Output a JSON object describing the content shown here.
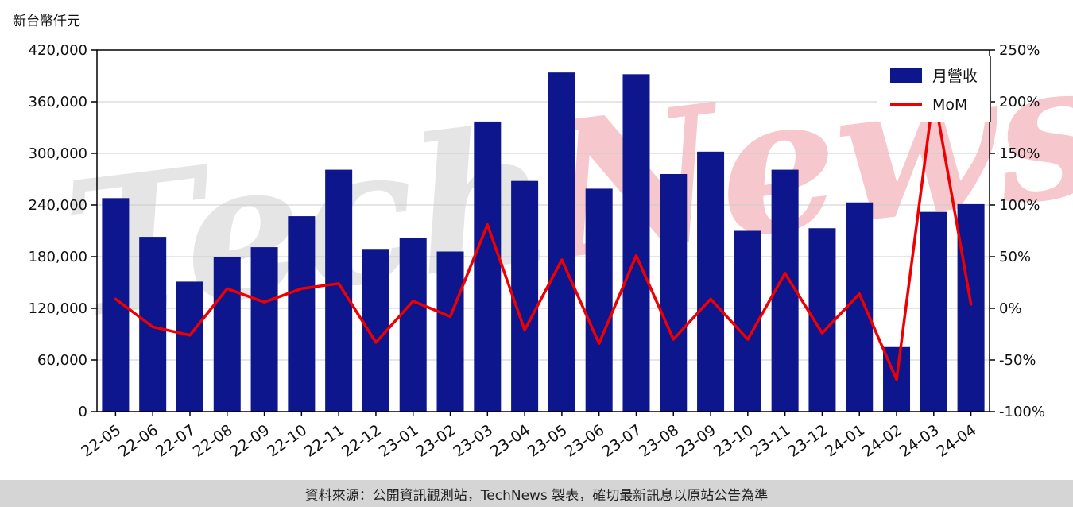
{
  "unit_label": "新台幣仟元",
  "watermark": {
    "part1": "Tech",
    "part2": "News"
  },
  "legend": {
    "bar_label": "月營收",
    "line_label": "MoM"
  },
  "footer": {
    "text": "資料來源：公開資訊觀測站，TechNews 製表，確切最新訊息以原站公告為準"
  },
  "colors": {
    "bar": "#0d168c",
    "line": "#ee0000",
    "grid": "#cccccc",
    "axis": "#000000",
    "tick_text": "#111111",
    "footer_bg": "#d5d5d5"
  },
  "chart_data": {
    "type": "bar",
    "title": "",
    "xlabel": "",
    "ylabel": "新台幣仟元",
    "grid": true,
    "legend_position": "top-right",
    "categories": [
      "22-05",
      "22-06",
      "22-07",
      "22-08",
      "22-09",
      "22-10",
      "22-11",
      "22-12",
      "23-01",
      "23-02",
      "23-03",
      "23-04",
      "23-05",
      "23-06",
      "23-07",
      "23-08",
      "23-09",
      "23-10",
      "23-11",
      "23-12",
      "24-01",
      "24-02",
      "24-03",
      "24-04"
    ],
    "series": [
      {
        "name": "月營收",
        "type": "bar",
        "axis": "left",
        "values": [
          248000,
          203000,
          151000,
          180000,
          191000,
          227000,
          281000,
          189000,
          202000,
          186000,
          337000,
          268000,
          394000,
          259000,
          392000,
          276000,
          302000,
          210000,
          281000,
          213000,
          243000,
          75000,
          232000,
          241000
        ]
      },
      {
        "name": "MoM",
        "type": "line",
        "axis": "right",
        "values": [
          9,
          -18,
          -26,
          19,
          6,
          19,
          24,
          -33,
          7,
          -8,
          81,
          -21,
          47,
          -34,
          51,
          -30,
          9,
          -30,
          34,
          -24,
          14,
          -69,
          209,
          4
        ]
      }
    ],
    "left_axis": {
      "min": 0,
      "max": 420000,
      "tick_values": [
        0,
        60000,
        120000,
        180000,
        240000,
        300000,
        360000,
        420000
      ],
      "tick_labels": [
        "0",
        "60,000",
        "120,000",
        "180,000",
        "240,000",
        "300,000",
        "360,000",
        "420,000"
      ]
    },
    "right_axis": {
      "min": -100,
      "max": 250,
      "tick_values": [
        -100,
        -50,
        0,
        50,
        100,
        150,
        200,
        250
      ],
      "tick_labels": [
        "-100%",
        "-50%",
        "0%",
        "50%",
        "100%",
        "150%",
        "200%",
        "250%"
      ]
    }
  }
}
